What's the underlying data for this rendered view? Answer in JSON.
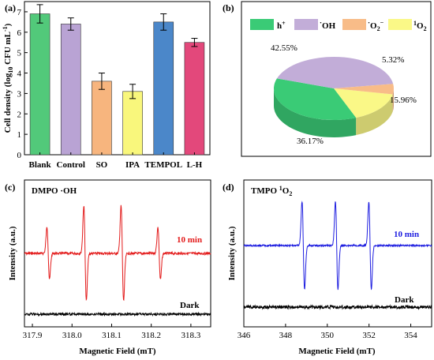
{
  "chart_data": [
    {
      "panel": "(a)",
      "type": "bar",
      "ylabel_main": "Cell density (log",
      "ylabel_sub": "10",
      "ylabel_unit": " CFU mL",
      "ylabel_sup": "-1",
      "ylabel_close": ")",
      "ylim": [
        0,
        7.5
      ],
      "yticks": [
        "0",
        "1",
        "2",
        "3",
        "4",
        "5",
        "6",
        "7"
      ],
      "categories": [
        "Blank",
        "Control",
        "SO",
        "IPA",
        "TEMPOL",
        "L-H"
      ],
      "values": [
        6.9,
        6.4,
        3.6,
        3.1,
        6.5,
        5.5
      ],
      "errors": [
        0.45,
        0.3,
        0.4,
        0.35,
        0.4,
        0.2
      ],
      "colors": [
        "#52C97A",
        "#B9A3D4",
        "#F7B57E",
        "#F9F77C",
        "#4B87C9",
        "#E3487B"
      ]
    },
    {
      "panel": "(b)",
      "type": "pie",
      "slices": [
        {
          "name": "h",
          "sup": "+",
          "value": 36.17,
          "label": "36.17%",
          "color": "#3ACB76"
        },
        {
          "name": "OH",
          "pre": "·",
          "value": 42.55,
          "label": "42.55%",
          "color": "#C2ADD8"
        },
        {
          "name": "O",
          "sub": "2",
          "pre": "·",
          "sup": "−",
          "value": 5.32,
          "label": "5.32%",
          "color": "#F8BC88"
        },
        {
          "name": "O",
          "sub": "2",
          "presup": "1",
          "value": 15.96,
          "label": "15.96%",
          "color": "#FAF887"
        }
      ]
    },
    {
      "panel": "(c)",
      "type": "line",
      "annotation": "DMPO ·OH",
      "xlabel": "Magnetic Field (mT)",
      "ylabel": "Intensity (a.u.)",
      "xlim": [
        317.88,
        318.35
      ],
      "xticks": [
        "317.9",
        "318.0",
        "318.1",
        "318.2",
        "318.3"
      ],
      "series": [
        {
          "name": "10 min",
          "color": "#E31B1B"
        },
        {
          "name": "Dark",
          "color": "#000000"
        }
      ]
    },
    {
      "panel": "(d)",
      "type": "line",
      "annotation": "TMPO ",
      "annotation_sup": "1",
      "annotation_main": "O",
      "annotation_sub": "2",
      "xlabel": "Magnetic Field (mT)",
      "ylabel": "Intensity (a.u.)",
      "xlim": [
        346,
        355
      ],
      "xticks": [
        "346",
        "348",
        "350",
        "352",
        "354"
      ],
      "series": [
        {
          "name": "10 min",
          "color": "#1E1EE0"
        },
        {
          "name": "Dark",
          "color": "#000000"
        }
      ]
    }
  ]
}
